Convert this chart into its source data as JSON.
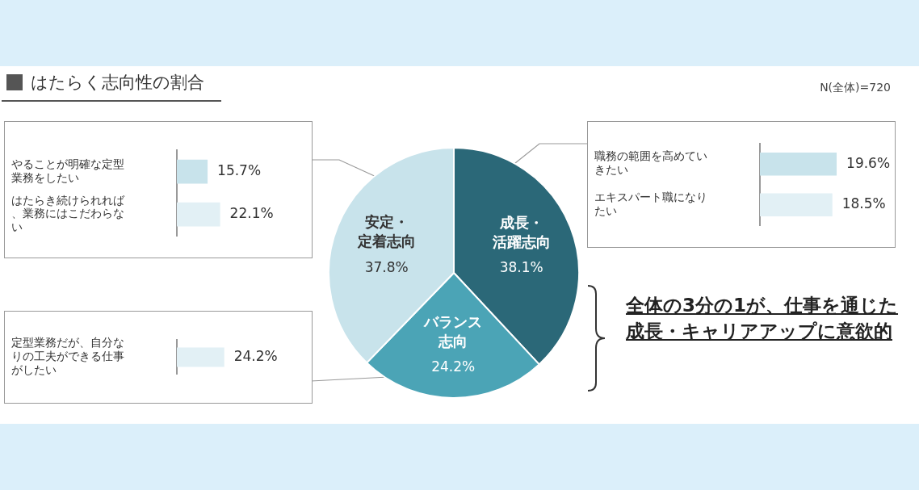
{
  "chart_data": [
    {
      "type": "pie",
      "title": "はたらく志向性の割合",
      "categories": [
        "成長・活躍志向",
        "バランス志向",
        "安定・定着志向"
      ],
      "values": [
        38.1,
        24.2,
        37.8
      ],
      "value_labels": [
        "38.1%",
        "24.2%",
        "37.8%"
      ],
      "colors": [
        "#2b6878",
        "#4ba4b6",
        "#c8e3eb"
      ],
      "legend": false,
      "annotations": [
        "N(全体)=720",
        "全体の3分の1が、仕事を通じた成長・キャリアアップに意欲的"
      ]
    },
    {
      "type": "bar",
      "orientation": "horizontal",
      "categories": [
        "やることが明確な定型業務をしたい",
        "はたらき続けられれば、業務にはこだわらない"
      ],
      "values": [
        15.7,
        22.1
      ],
      "value_labels": [
        "15.7%",
        "22.1%"
      ],
      "colors": [
        "#c8e3eb",
        "#e2f0f5"
      ],
      "legend": false
    },
    {
      "type": "bar",
      "orientation": "horizontal",
      "categories": [
        "定型業務だが、自分なりの工夫ができる仕事がしたい"
      ],
      "values": [
        24.2
      ],
      "value_labels": [
        "24.2%"
      ],
      "colors": [
        "#e2f0f5"
      ],
      "legend": false
    },
    {
      "type": "bar",
      "orientation": "horizontal",
      "categories": [
        "職務の範囲を高めていきたい",
        "エキスパート職になりたい"
      ],
      "values": [
        19.6,
        18.5
      ],
      "value_labels": [
        "19.6%",
        "18.5%"
      ],
      "colors": [
        "#c8e3eb",
        "#e2f0f5"
      ],
      "legend": false
    }
  ]
}
